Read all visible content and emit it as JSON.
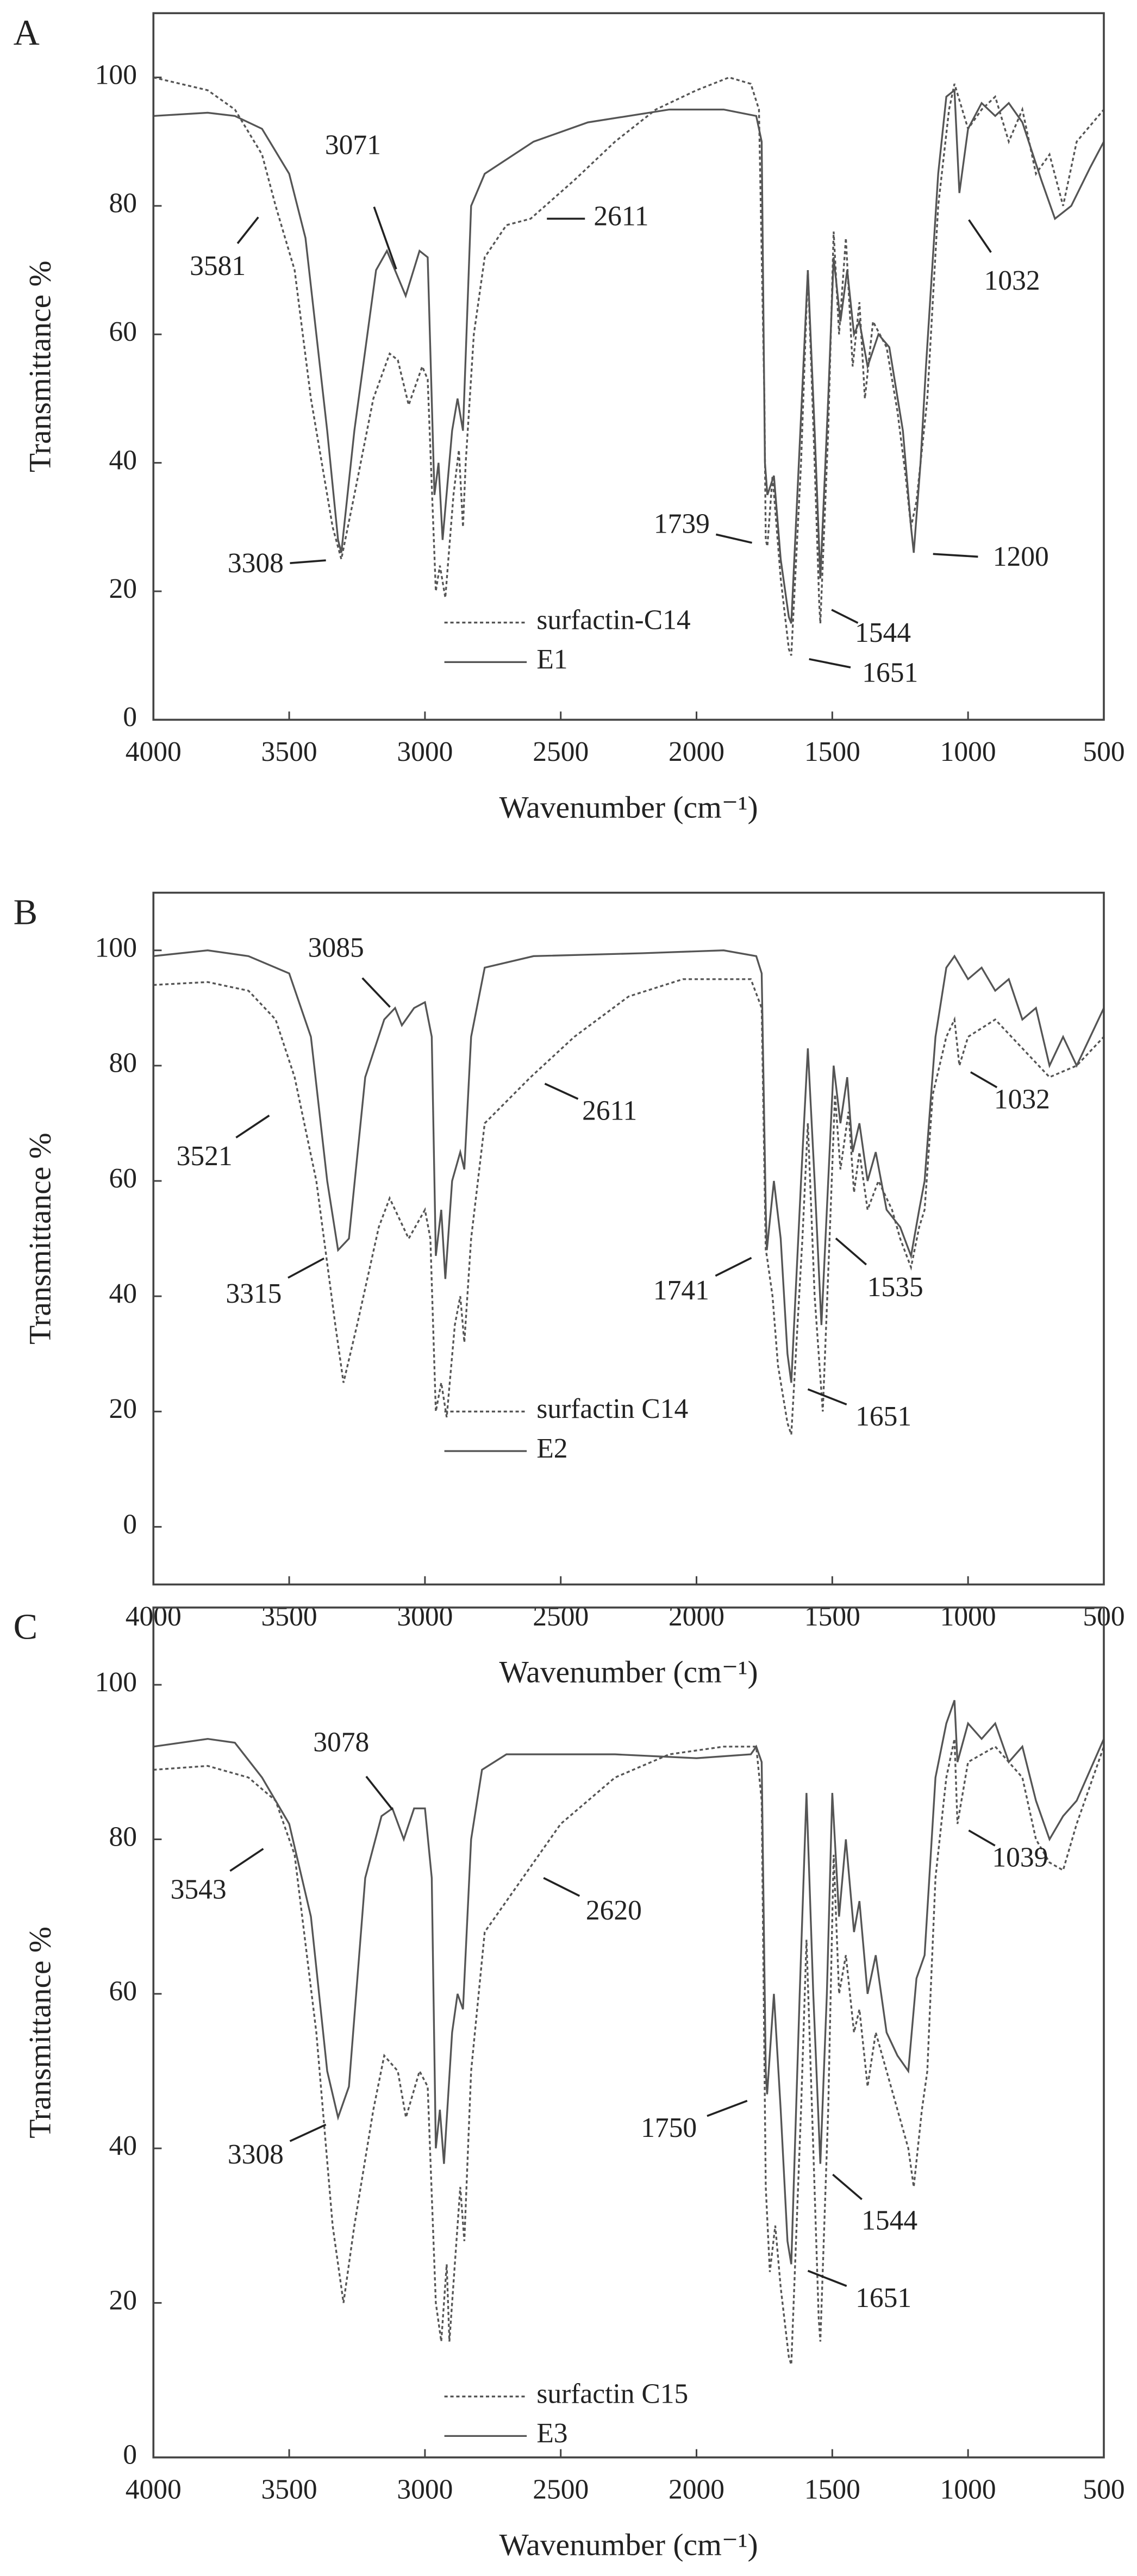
{
  "chart_data": [
    {
      "type": "line",
      "panel": "A",
      "xlabel": "Wavenumber (cm⁻¹)",
      "ylabel": "Transmittance %",
      "xlim": [
        4000,
        500
      ],
      "ylim": [
        0,
        110
      ],
      "xticks": [
        4000,
        3500,
        3000,
        2500,
        2000,
        1500,
        1000,
        500
      ],
      "yticks": [
        0,
        20,
        40,
        60,
        80,
        100
      ],
      "legend": "bottom-center",
      "series": [
        {
          "name": "surfactin-C14",
          "color": "#555555",
          "dash": "dotted",
          "x": [
            4000,
            3900,
            3800,
            3700,
            3600,
            3550,
            3480,
            3420,
            3340,
            3308,
            3260,
            3190,
            3130,
            3100,
            3060,
            3010,
            2990,
            2960,
            2945,
            2925,
            2895,
            2875,
            2860,
            2850,
            2820,
            2780,
            2700,
            2611,
            2450,
            2300,
            2150,
            2000,
            1880,
            1800,
            1770,
            1750,
            1745,
            1739,
            1720,
            1690,
            1660,
            1651,
            1615,
            1590,
            1565,
            1548,
            1544,
            1515,
            1495,
            1475,
            1450,
            1425,
            1400,
            1380,
            1350,
            1300,
            1260,
            1230,
            1210,
            1190,
            1170,
            1150,
            1110,
            1070,
            1050,
            1000,
            950,
            900,
            850,
            800,
            750,
            700,
            650,
            600,
            500
          ],
          "values": [
            100,
            99,
            98,
            95,
            88,
            80,
            70,
            50,
            30,
            25,
            35,
            50,
            57,
            56,
            49,
            55,
            53,
            20,
            24,
            19,
            35,
            42,
            30,
            40,
            60,
            72,
            77,
            78,
            84,
            90,
            95,
            98,
            100,
            99,
            95,
            50,
            28,
            27,
            38,
            22,
            11,
            10,
            40,
            70,
            40,
            18,
            15,
            45,
            76,
            60,
            75,
            55,
            65,
            50,
            62,
            58,
            48,
            38,
            30,
            34,
            42,
            50,
            80,
            95,
            99,
            92,
            95,
            97,
            90,
            95,
            85,
            88,
            80,
            90,
            95
          ]
        },
        {
          "name": "E1",
          "color": "#555555",
          "dash": "solid",
          "x": [
            4000,
            3800,
            3700,
            3600,
            3500,
            3440,
            3360,
            3320,
            3308,
            3260,
            3180,
            3140,
            3071,
            3020,
            2990,
            2965,
            2950,
            2935,
            2900,
            2880,
            2860,
            2830,
            2780,
            2600,
            2400,
            2100,
            1900,
            1780,
            1760,
            1748,
            1739,
            1715,
            1690,
            1660,
            1651,
            1612,
            1590,
            1565,
            1544,
            1515,
            1495,
            1470,
            1445,
            1420,
            1400,
            1370,
            1330,
            1290,
            1240,
            1210,
            1200,
            1175,
            1155,
            1110,
            1080,
            1050,
            1032,
            1000,
            950,
            900,
            850,
            800,
            730,
            680,
            620,
            550,
            500
          ],
          "values": [
            94,
            94.5,
            94,
            92,
            85,
            75,
            45,
            28,
            26,
            45,
            70,
            73,
            66,
            73,
            72,
            35,
            40,
            28,
            45,
            50,
            45,
            80,
            85,
            90,
            93,
            95,
            95,
            94,
            90,
            40,
            35,
            38,
            25,
            16,
            15,
            50,
            70,
            45,
            22,
            50,
            72,
            62,
            70,
            60,
            62,
            55,
            60,
            58,
            45,
            30,
            26,
            40,
            55,
            85,
            97,
            98,
            82,
            92,
            96,
            94,
            96,
            93,
            84,
            78,
            80,
            86,
            90
          ]
        }
      ],
      "annotations": [
        {
          "value": 3581,
          "y": 80
        },
        {
          "value": 3071,
          "y": 66
        },
        {
          "value": 2611,
          "y": 78
        },
        {
          "value": 3308,
          "y": 25
        },
        {
          "value": 1739,
          "y": 27
        },
        {
          "value": 1200,
          "y": 26
        },
        {
          "value": 1544,
          "y": 18
        },
        {
          "value": 1651,
          "y": 10
        },
        {
          "value": 1032,
          "y": 80
        }
      ]
    },
    {
      "type": "line",
      "panel": "B",
      "xlabel": "Wavenumber (cm⁻¹)",
      "ylabel": "Transmittance %",
      "xlim": [
        4000,
        500
      ],
      "ylim": [
        -10,
        110
      ],
      "xticks": [
        4000,
        3500,
        3000,
        2500,
        2000,
        1500,
        1000,
        500
      ],
      "yticks": [
        0,
        20,
        40,
        60,
        80,
        100
      ],
      "legend": "bottom-center",
      "series": [
        {
          "name": "surfactin C14",
          "color": "#555555",
          "dash": "dotted",
          "x": [
            4000,
            3800,
            3650,
            3550,
            3480,
            3400,
            3330,
            3300,
            3250,
            3170,
            3130,
            3060,
            3000,
            2980,
            2960,
            2940,
            2920,
            2890,
            2870,
            2855,
            2830,
            2780,
            2611,
            2450,
            2250,
            2050,
            1800,
            1760,
            1745,
            1741,
            1720,
            1700,
            1665,
            1651,
            1610,
            1590,
            1565,
            1535,
            1510,
            1490,
            1470,
            1440,
            1420,
            1400,
            1370,
            1330,
            1280,
            1250,
            1210,
            1180,
            1160,
            1130,
            1080,
            1050,
            1032,
            1000,
            900,
            800,
            700,
            600,
            500
          ],
          "values": [
            94,
            94.5,
            93,
            88,
            78,
            60,
            35,
            25,
            35,
            52,
            57,
            50,
            55,
            50,
            20,
            25,
            19,
            35,
            40,
            32,
            50,
            70,
            78,
            85,
            92,
            95,
            95,
            90,
            48,
            47,
            40,
            28,
            18,
            16,
            50,
            70,
            40,
            20,
            50,
            75,
            62,
            72,
            58,
            65,
            55,
            60,
            55,
            50,
            45,
            52,
            55,
            75,
            85,
            88,
            80,
            85,
            88,
            83,
            78,
            80,
            85
          ]
        },
        {
          "name": "E2",
          "color": "#555555",
          "dash": "solid",
          "x": [
            4000,
            3800,
            3650,
            3500,
            3420,
            3360,
            3320,
            3280,
            3220,
            3150,
            3110,
            3085,
            3040,
            3000,
            2975,
            2960,
            2940,
            2925,
            2900,
            2870,
            2855,
            2830,
            2780,
            2600,
            2200,
            1900,
            1780,
            1760,
            1745,
            1741,
            1715,
            1690,
            1665,
            1651,
            1615,
            1590,
            1565,
            1540,
            1515,
            1495,
            1470,
            1445,
            1425,
            1400,
            1370,
            1340,
            1300,
            1250,
            1210,
            1180,
            1160,
            1120,
            1080,
            1050,
            1000,
            950,
            900,
            850,
            800,
            750,
            700,
            650,
            600,
            500
          ],
          "values": [
            99,
            100,
            99,
            96,
            85,
            60,
            48,
            50,
            78,
            88,
            90,
            87,
            90,
            91,
            85,
            47,
            55,
            43,
            60,
            65,
            62,
            85,
            97,
            99,
            99.5,
            100,
            99,
            96,
            55,
            48,
            60,
            50,
            30,
            25,
            60,
            83,
            60,
            35,
            60,
            80,
            70,
            78,
            65,
            70,
            60,
            65,
            55,
            52,
            47,
            55,
            60,
            85,
            97,
            99,
            95,
            97,
            93,
            95,
            88,
            90,
            80,
            85,
            80,
            90
          ]
        }
      ],
      "annotations": [
        {
          "value": 3085,
          "y": 88
        },
        {
          "value": 3521,
          "y": 73
        },
        {
          "value": 2611,
          "y": 78
        },
        {
          "value": 3315,
          "y": 48
        },
        {
          "value": 1032,
          "y": 80
        },
        {
          "value": 1741,
          "y": 48
        },
        {
          "value": 1535,
          "y": 52
        },
        {
          "value": 1651,
          "y": 25
        }
      ]
    },
    {
      "type": "line",
      "panel": "C",
      "xlabel": "Wavenumber (cm⁻¹)",
      "ylabel": "Transmittance %",
      "xlim": [
        4000,
        500
      ],
      "ylim": [
        0,
        110
      ],
      "xticks": [
        4000,
        3500,
        3000,
        2500,
        2000,
        1500,
        1000,
        500
      ],
      "yticks": [
        0,
        20,
        40,
        60,
        80,
        100
      ],
      "legend": "bottom-center",
      "series": [
        {
          "name": "surfactin C15",
          "color": "#555555",
          "dash": "dotted",
          "x": [
            4000,
            3800,
            3650,
            3550,
            3480,
            3400,
            3340,
            3300,
            3260,
            3190,
            3150,
            3100,
            3070,
            3020,
            2990,
            2960,
            2940,
            2920,
            2910,
            2880,
            2870,
            2855,
            2830,
            2780,
            2620,
            2500,
            2300,
            2100,
            1900,
            1780,
            1760,
            1745,
            1730,
            1710,
            1690,
            1660,
            1651,
            1615,
            1595,
            1570,
            1550,
            1544,
            1515,
            1495,
            1475,
            1450,
            1420,
            1400,
            1370,
            1340,
            1300,
            1260,
            1220,
            1200,
            1170,
            1150,
            1120,
            1080,
            1050,
            1039,
            1000,
            900,
            800,
            750,
            700,
            650,
            600,
            500
          ],
          "values": [
            89,
            89.5,
            88,
            85,
            78,
            55,
            30,
            20,
            30,
            45,
            52,
            50,
            44,
            50,
            48,
            20,
            15,
            25,
            15,
            30,
            35,
            28,
            50,
            68,
            76,
            82,
            88,
            91,
            92,
            92,
            85,
            35,
            24,
            30,
            22,
            13,
            12,
            45,
            67,
            40,
            18,
            15,
            45,
            78,
            60,
            65,
            55,
            58,
            48,
            55,
            50,
            45,
            40,
            35,
            45,
            50,
            75,
            88,
            93,
            82,
            90,
            92,
            88,
            80,
            77,
            76,
            82,
            92
          ]
        },
        {
          "name": "E3",
          "color": "#555555",
          "dash": "solid",
          "x": [
            4000,
            3800,
            3700,
            3600,
            3500,
            3420,
            3360,
            3320,
            3280,
            3220,
            3160,
            3120,
            3078,
            3040,
            3000,
            2975,
            2960,
            2945,
            2930,
            2900,
            2880,
            2860,
            2830,
            2790,
            2700,
            2300,
            2000,
            1800,
            1780,
            1760,
            1745,
            1740,
            1715,
            1690,
            1665,
            1651,
            1620,
            1595,
            1570,
            1544,
            1520,
            1500,
            1475,
            1450,
            1420,
            1400,
            1370,
            1340,
            1300,
            1260,
            1220,
            1190,
            1160,
            1120,
            1080,
            1050,
            1039,
            1000,
            950,
            900,
            850,
            800,
            750,
            700,
            650,
            600,
            500
          ],
          "values": [
            92,
            93,
            92.5,
            88,
            82,
            70,
            50,
            44,
            48,
            75,
            83,
            84,
            80,
            84,
            84,
            75,
            40,
            45,
            38,
            55,
            60,
            58,
            80,
            89,
            91,
            91,
            90.5,
            91,
            92,
            90,
            50,
            47,
            60,
            45,
            28,
            25,
            60,
            86,
            60,
            38,
            60,
            86,
            70,
            80,
            68,
            72,
            60,
            65,
            55,
            52,
            50,
            62,
            65,
            88,
            95,
            98,
            90,
            95,
            93,
            95,
            90,
            92,
            85,
            80,
            83,
            85,
            93
          ]
        }
      ],
      "annotations": [
        {
          "value": 3543,
          "y": 80
        },
        {
          "value": 3078,
          "y": 82
        },
        {
          "value": 2620,
          "y": 76
        },
        {
          "value": 3308,
          "y": 44
        },
        {
          "value": 1039,
          "y": 82
        },
        {
          "value": 1750,
          "y": 47
        },
        {
          "value": 1544,
          "y": 38
        },
        {
          "value": 1651,
          "y": 25
        }
      ]
    }
  ]
}
